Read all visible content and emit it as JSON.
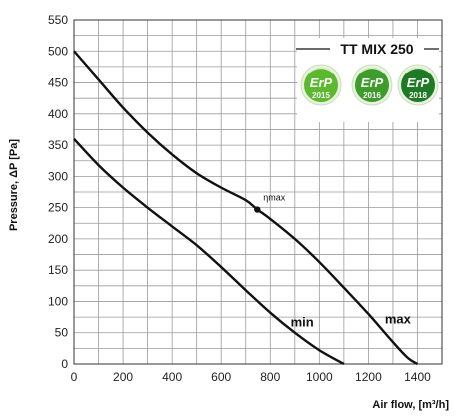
{
  "chart_data": {
    "type": "line",
    "title": "TT MIX 250",
    "xlabel": "Air flow, [m³/h]",
    "ylabel": "Pressure, ΔP [Pa]",
    "xlim": [
      0,
      1500
    ],
    "ylim": [
      0,
      550
    ],
    "xticks": [
      0,
      200,
      400,
      600,
      800,
      1000,
      1200,
      1400
    ],
    "yticks": [
      0,
      50,
      100,
      150,
      200,
      250,
      300,
      350,
      400,
      450,
      500,
      550
    ],
    "grid": true,
    "series": [
      {
        "name": "max",
        "x": [
          0,
          100,
          200,
          300,
          400,
          500,
          600,
          700,
          747,
          800,
          900,
          1000,
          1100,
          1200,
          1300,
          1360,
          1400
        ],
        "y": [
          500,
          455,
          410,
          370,
          335,
          305,
          282,
          262,
          247,
          232,
          200,
          163,
          122,
          80,
          35,
          10,
          0
        ]
      },
      {
        "name": "min",
        "x": [
          0,
          100,
          200,
          300,
          400,
          500,
          600,
          700,
          800,
          900,
          1000,
          1100
        ],
        "y": [
          360,
          318,
          282,
          250,
          220,
          190,
          155,
          118,
          82,
          50,
          22,
          0
        ]
      }
    ],
    "annotations": [
      {
        "text": "ηmax",
        "x": 747,
        "y": 247
      }
    ],
    "badges": [
      {
        "text": "ErP",
        "year": "2015",
        "color": "#5cb82e"
      },
      {
        "text": "ErP",
        "year": "2016",
        "color": "#3e9c2a"
      },
      {
        "text": "ErP",
        "year": "2018",
        "color": "#1f7a25"
      }
    ]
  }
}
